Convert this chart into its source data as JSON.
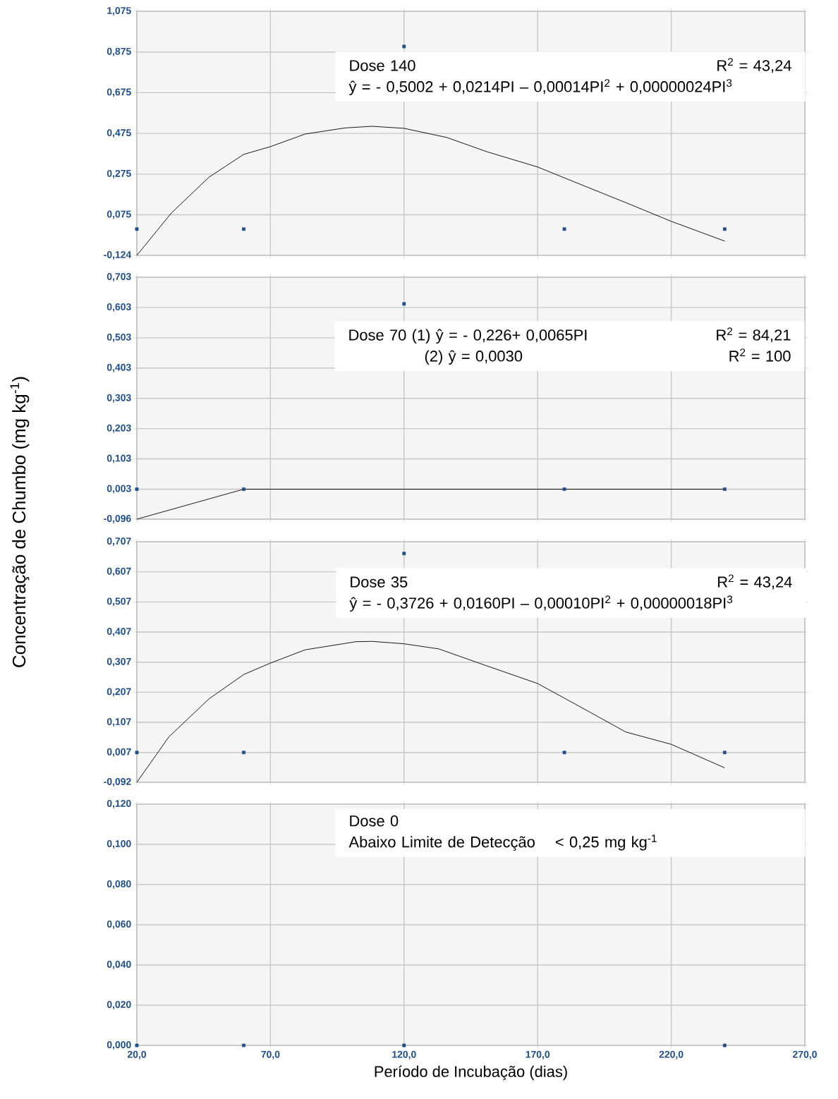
{
  "chart_data": [
    {
      "type": "scatter",
      "xlim": [
        20,
        270
      ],
      "ylim": [
        -0.124,
        1.075
      ],
      "tick_labels": "y",
      "grid": true,
      "xticks": [
        {
          "value": 20,
          "label": null
        },
        {
          "value": 70,
          "label": null
        },
        {
          "value": 120,
          "label": null
        },
        {
          "value": 170,
          "label": null
        },
        {
          "value": 220,
          "label": null
        },
        {
          "value": 270,
          "label": null
        }
      ],
      "yticks": [
        {
          "value": -0.124,
          "label": "-0,124"
        },
        {
          "value": 0.075,
          "label": "0,075"
        },
        {
          "value": 0.275,
          "label": "0,275"
        },
        {
          "value": 0.475,
          "label": "0,475"
        },
        {
          "value": 0.675,
          "label": "0,675"
        },
        {
          "value": 0.875,
          "label": "0,875"
        },
        {
          "value": 1.075,
          "label": "1,075"
        }
      ],
      "annotations": [
        "Dose 140",
        "R$^{2}$ = 43,24",
        "ŷ = - 0,5002 + 0,0214PI – 0,00014PI$^{2}$ + 0,00000024PI$^{3}$"
      ],
      "series": [
        {
          "type": "scatter",
          "marker": "square",
          "color": "#1f4e8c",
          "x": [
            20,
            60,
            120,
            180,
            240
          ],
          "values": [
            0.005,
            0.005,
            0.902,
            0.005,
            0.005
          ]
        },
        {
          "type": "line",
          "marker": "none",
          "line_style": "solid",
          "color": "#000000",
          "x": [
            20,
            33,
            47,
            60,
            70,
            83,
            98,
            108,
            120,
            136,
            151,
            170,
            185,
            203,
            220,
            240
          ],
          "values": [
            -0.124,
            0.085,
            0.26,
            0.372,
            0.41,
            0.472,
            0.502,
            0.51,
            0.5,
            0.455,
            0.385,
            0.31,
            0.23,
            0.135,
            0.043,
            -0.054
          ]
        }
      ]
    },
    {
      "type": "scatter",
      "ylabel": "Concentração de Chumbo (mg kg$^{-1}$)",
      "xlim": [
        20,
        270
      ],
      "ylim": [
        -0.096,
        0.703
      ],
      "tick_labels": "y",
      "grid": true,
      "xticks": [
        {
          "value": 20,
          "label": null
        },
        {
          "value": 70,
          "label": null
        },
        {
          "value": 120,
          "label": null
        },
        {
          "value": 170,
          "label": null
        },
        {
          "value": 220,
          "label": null
        },
        {
          "value": 270,
          "label": null
        }
      ],
      "yticks": [
        {
          "value": -0.096,
          "label": "-0,096"
        },
        {
          "value": 0.003,
          "label": "0,003"
        },
        {
          "value": 0.103,
          "label": "0,103"
        },
        {
          "value": 0.203,
          "label": "0,203"
        },
        {
          "value": 0.303,
          "label": "0,303"
        },
        {
          "value": 0.403,
          "label": "0,403"
        },
        {
          "value": 0.503,
          "label": "0,503"
        },
        {
          "value": 0.603,
          "label": "0,603"
        },
        {
          "value": 0.703,
          "label": "0,703"
        }
      ],
      "annotations": [
        "Dose 70  (1)  ŷ = - 0,226+ 0,0065PI",
        "R$^{2}$ = 84,21",
        "(2)  ŷ = 0,0030",
        "R$^{2}$ = 100"
      ],
      "series": [
        {
          "type": "scatter",
          "marker": "square",
          "color": "#1f4e8c",
          "x": [
            20,
            60,
            120,
            180,
            240
          ],
          "values": [
            0.003,
            0.003,
            0.615,
            0.003,
            0.003
          ]
        },
        {
          "type": "line",
          "marker": "none",
          "line_style": "solid",
          "color": "#000000",
          "x": [
            20,
            60,
            240
          ],
          "values": [
            -0.096,
            0.003,
            0.003
          ]
        }
      ]
    },
    {
      "type": "scatter",
      "xlim": [
        20,
        270
      ],
      "ylim": [
        -0.092,
        0.707
      ],
      "tick_labels": "y",
      "grid": true,
      "xticks": [
        {
          "value": 20,
          "label": null
        },
        {
          "value": 70,
          "label": null
        },
        {
          "value": 120,
          "label": null
        },
        {
          "value": 170,
          "label": null
        },
        {
          "value": 220,
          "label": null
        },
        {
          "value": 270,
          "label": null
        }
      ],
      "yticks": [
        {
          "value": -0.092,
          "label": "-0,092"
        },
        {
          "value": 0.007,
          "label": "0,007"
        },
        {
          "value": 0.107,
          "label": "0,107"
        },
        {
          "value": 0.207,
          "label": "0,207"
        },
        {
          "value": 0.307,
          "label": "0,307"
        },
        {
          "value": 0.407,
          "label": "0,407"
        },
        {
          "value": 0.507,
          "label": "0,507"
        },
        {
          "value": 0.607,
          "label": "0,607"
        },
        {
          "value": 0.707,
          "label": "0,707"
        }
      ],
      "annotations": [
        "Dose 35",
        "R$^{2}$ = 43,24",
        "ŷ = - 0,3726 + 0,0160PI – 0,00010PI$^{2}$ + 0,00000018PI$^{3}$"
      ],
      "series": [
        {
          "type": "scatter",
          "marker": "square",
          "color": "#1f4e8c",
          "x": [
            20,
            60,
            120,
            180,
            240
          ],
          "values": [
            0.007,
            0.007,
            0.668,
            0.007,
            0.007
          ]
        },
        {
          "type": "line",
          "marker": "none",
          "line_style": "solid",
          "color": "#000000",
          "x": [
            20,
            32,
            47,
            60,
            70,
            83,
            102,
            108,
            120,
            133,
            148,
            170,
            184,
            203,
            220,
            240
          ],
          "values": [
            -0.092,
            0.059,
            0.185,
            0.266,
            0.304,
            0.348,
            0.375,
            0.376,
            0.368,
            0.351,
            0.304,
            0.236,
            0.168,
            0.075,
            0.034,
            -0.044
          ]
        }
      ]
    },
    {
      "type": "scatter",
      "xlabel": "Período de Incubação (dias)",
      "xlim": [
        20,
        270
      ],
      "ylim": [
        0,
        0.12
      ],
      "grid": true,
      "xticks": [
        {
          "value": 20,
          "label": "20,0"
        },
        {
          "value": 70,
          "label": "70,0"
        },
        {
          "value": 120,
          "label": "120,0"
        },
        {
          "value": 170,
          "label": "170,0"
        },
        {
          "value": 220,
          "label": "220,0"
        },
        {
          "value": 270,
          "label": "270,0"
        }
      ],
      "yticks": [
        {
          "value": 0,
          "label": "0,000"
        },
        {
          "value": 0.02,
          "label": "0,020"
        },
        {
          "value": 0.04,
          "label": "0,040"
        },
        {
          "value": 0.06,
          "label": "0,060"
        },
        {
          "value": 0.08,
          "label": "0,080"
        },
        {
          "value": 0.1,
          "label": "0,100"
        },
        {
          "value": 0.12,
          "label": "0,120"
        }
      ],
      "annotations": [
        "Dose 0",
        "Abaixo Limite de Detecção",
        "< 0,25 mg kg$^{-1}$"
      ],
      "series": [
        {
          "type": "scatter",
          "marker": "square",
          "color": "#1f4e8c",
          "x": [
            20,
            60,
            120,
            240
          ],
          "values": [
            0,
            0,
            0,
            0
          ]
        }
      ]
    }
  ]
}
